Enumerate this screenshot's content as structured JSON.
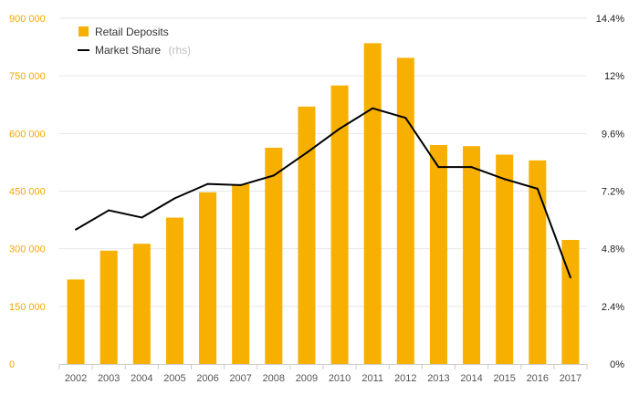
{
  "chart_data": {
    "type": "bar",
    "categories": [
      "2002",
      "2003",
      "2004",
      "2005",
      "2006",
      "2007",
      "2008",
      "2009",
      "2010",
      "2011",
      "2012",
      "2013",
      "2014",
      "2015",
      "2016",
      "2017"
    ],
    "series": [
      {
        "name": "Retail Deposits",
        "type": "bar",
        "axis": "left",
        "color": "#f7b000",
        "values": [
          220000,
          295000,
          313000,
          381000,
          447000,
          468000,
          563000,
          670000,
          725000,
          835000,
          797000,
          570000,
          567000,
          545000,
          530000,
          323000
        ]
      },
      {
        "name": "Market Share",
        "legend_suffix": "(rhs)",
        "type": "line",
        "axis": "right",
        "color": "#000000",
        "values": [
          5.6,
          6.4,
          6.1,
          6.9,
          7.5,
          7.45,
          7.85,
          8.8,
          9.8,
          10.65,
          10.25,
          8.2,
          8.2,
          7.7,
          7.3,
          3.6
        ]
      }
    ],
    "y_left": {
      "ylim": [
        0,
        900000
      ],
      "ticks": [
        0,
        150000,
        300000,
        450000,
        600000,
        750000,
        900000
      ],
      "tick_labels": [
        "0",
        "150 000",
        "300 000",
        "450 000",
        "600 000",
        "750 000",
        "900 000"
      ],
      "tick_color": "#f5a800"
    },
    "y_right": {
      "ylim": [
        0,
        14.4
      ],
      "ticks": [
        0,
        2.4,
        4.8,
        7.2,
        9.6,
        12,
        14.4
      ],
      "tick_labels": [
        "0%",
        "2.4%",
        "4.8%",
        "7.2%",
        "9.6%",
        "12%",
        "14.4%"
      ]
    },
    "title": "",
    "xlabel": "",
    "ylabel": "",
    "grid": true,
    "legend_position": "top-left"
  }
}
